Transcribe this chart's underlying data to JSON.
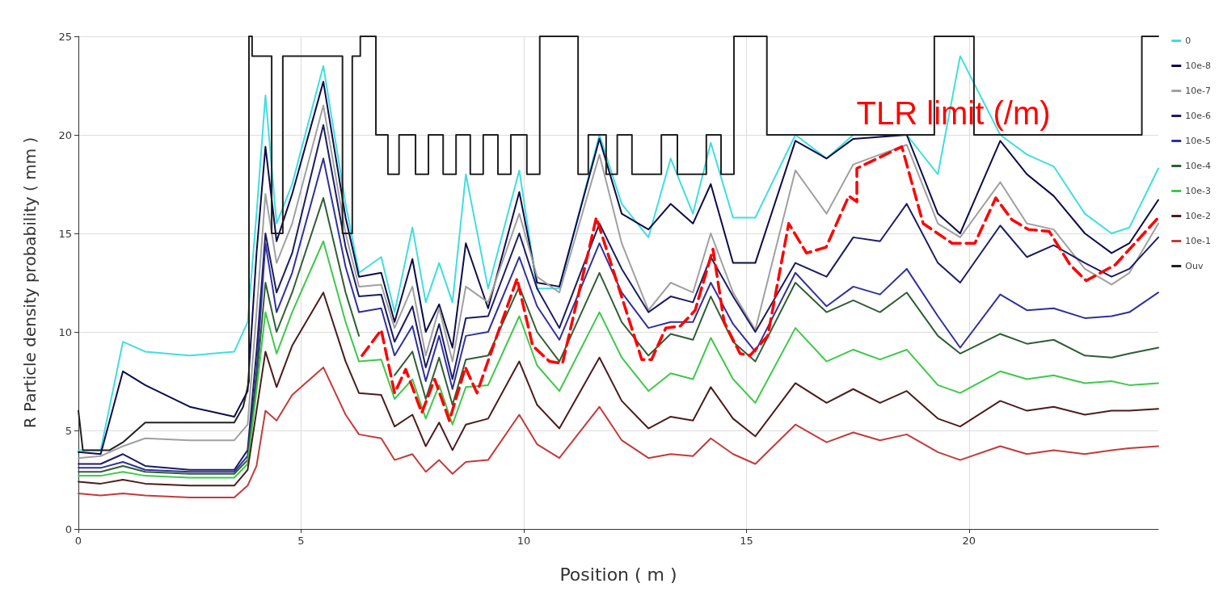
{
  "chart_data": {
    "type": "line",
    "xlabel": "Position ( m )",
    "ylabel": "R Particle density probability ( mm )",
    "xlim": [
      0,
      24.25
    ],
    "xticks": [
      0,
      5,
      10,
      15,
      20
    ],
    "ylim": [
      0,
      25
    ],
    "yticks": [
      0,
      5,
      10,
      15,
      20,
      25
    ],
    "grid": true,
    "legend": "right",
    "marker": "none",
    "x": [
      0,
      0.5,
      1.0,
      1.5,
      2.5,
      3.5,
      3.8,
      4.0,
      4.2,
      4.45,
      4.8,
      5.5,
      6.0,
      6.3,
      6.8,
      7.1,
      7.5,
      7.8,
      8.1,
      8.4,
      8.7,
      9.2,
      9.9,
      10.3,
      10.8,
      11.7,
      12.2,
      12.8,
      13.3,
      13.8,
      14.2,
      14.7,
      15.2,
      16.1,
      16.8,
      17.4,
      18.0,
      18.6,
      19.3,
      19.8,
      20.7,
      21.3,
      21.9,
      22.6,
      23.2,
      23.6,
      24.25
    ],
    "annotations": [
      {
        "text": "TLR limit (/m)",
        "x": 19.65,
        "y": 21.1
      }
    ],
    "series": [
      {
        "name": "0",
        "color": "#40dede",
        "values": [
          4.0,
          4.0,
          9.5,
          9.0,
          8.8,
          9.0,
          10.5,
          16,
          22.0,
          15.5,
          17.5,
          23.5,
          16.5,
          13.0,
          13.8,
          11.0,
          15.3,
          11.5,
          13.5,
          11.5,
          18.0,
          12.2,
          18.2,
          12.2,
          12.2,
          20.0,
          16.5,
          14.8,
          18.8,
          16.0,
          19.6,
          15.8,
          15.8,
          20.0,
          18.8,
          20.0,
          20.0,
          20.0,
          18.0,
          24.0,
          20.0,
          19.0,
          18.4,
          16.0,
          15.0,
          15.3,
          18.3
        ]
      },
      {
        "name": "10e-8",
        "color": "#0c0c4a",
        "values": [
          3.9,
          3.8,
          8.0,
          7.3,
          6.2,
          5.7,
          7.0,
          14,
          19.4,
          14.6,
          17.0,
          22.7,
          15.8,
          12.8,
          13.0,
          10.5,
          13.7,
          10.0,
          11.4,
          9.2,
          14.5,
          11.2,
          17.1,
          12.5,
          12.3,
          19.8,
          16.0,
          15.2,
          16.5,
          15.5,
          17.5,
          13.5,
          13.5,
          19.7,
          18.8,
          19.8,
          19.9,
          20.0,
          16.0,
          15.0,
          19.7,
          18.0,
          16.9,
          15.0,
          14.0,
          14.5,
          16.7
        ]
      },
      {
        "name": "10e-7",
        "color": "#a0a0a0",
        "values": [
          3.6,
          3.7,
          4.2,
          4.6,
          4.5,
          4.5,
          5.3,
          11,
          17,
          13.5,
          15.5,
          21.5,
          15.0,
          12.3,
          12.4,
          10.2,
          12.3,
          8.8,
          11.2,
          8.5,
          12.3,
          11.5,
          16.0,
          12.8,
          12.0,
          19.0,
          14.5,
          11.1,
          12.5,
          12.0,
          15.0,
          12.0,
          10.1,
          18.2,
          16.0,
          18.5,
          19.0,
          19.5,
          15.5,
          14.8,
          17.6,
          15.5,
          15.2,
          13.2,
          12.4,
          13.0,
          15.5
        ]
      },
      {
        "name": "10e-6",
        "color": "#1c1c62",
        "values": [
          3.3,
          3.3,
          3.8,
          3.2,
          3.0,
          3.0,
          4.0,
          9,
          15.0,
          12,
          14,
          20.5,
          14.3,
          11.8,
          11.9,
          9.5,
          11.3,
          8.2,
          10.4,
          7.6,
          10.7,
          10.8,
          15.0,
          12.2,
          10.2,
          15.5,
          13.2,
          11.0,
          11.8,
          11.5,
          13.8,
          11.8,
          10.0,
          13.5,
          12.8,
          14.8,
          14.6,
          16.5,
          13.5,
          12.5,
          15.4,
          13.8,
          14.4,
          13.5,
          12.8,
          13.2,
          14.8
        ]
      },
      {
        "name": "10e-5",
        "color": "#30309c",
        "values": [
          3.1,
          3.1,
          3.4,
          3.0,
          2.9,
          2.9,
          3.7,
          8,
          14.5,
          11,
          13.0,
          18.8,
          13.3,
          11,
          11.2,
          8.8,
          10.3,
          7.5,
          9.8,
          7.1,
          9.8,
          10.0,
          13.8,
          11.3,
          9.6,
          14.5,
          12.0,
          10.2,
          10.5,
          10.5,
          12.5,
          10.4,
          9.0,
          13.0,
          11.3,
          12.3,
          11.9,
          13.2,
          10.8,
          9.2,
          11.9,
          11.1,
          11.2,
          10.7,
          10.8,
          11.0,
          12.0
        ]
      },
      {
        "name": "10e-4",
        "color": "#2f5e34",
        "values": [
          2.9,
          2.9,
          3.2,
          2.9,
          2.8,
          2.8,
          3.5,
          7.5,
          12.5,
          10,
          12.0,
          16.8,
          12,
          9.8,
          null,
          7.8,
          9.0,
          6.6,
          8.7,
          6.3,
          8.6,
          8.8,
          12.3,
          10.0,
          8.5,
          13.0,
          10.5,
          8.8,
          9.9,
          9.6,
          11.8,
          9.5,
          8.5,
          12.5,
          11.0,
          11.6,
          11.0,
          12.0,
          9.8,
          8.9,
          9.9,
          9.4,
          9.6,
          8.8,
          8.7,
          8.9,
          9.2
        ]
      },
      {
        "name": "10e-3",
        "color": "#3ec84a",
        "values": [
          2.7,
          2.7,
          2.9,
          2.7,
          2.6,
          2.6,
          3.3,
          7,
          11.0,
          8.9,
          11.0,
          14.6,
          10.5,
          8.5,
          8.6,
          6.6,
          7.6,
          5.6,
          7.3,
          5.3,
          7.2,
          7.3,
          10.8,
          8.3,
          7.0,
          11.0,
          8.7,
          7.0,
          7.9,
          7.6,
          9.7,
          7.6,
          6.4,
          10.2,
          8.5,
          9.1,
          8.6,
          9.1,
          7.3,
          6.9,
          8.0,
          7.6,
          7.8,
          7.4,
          7.5,
          7.3,
          7.4
        ]
      },
      {
        "name": "10e-2",
        "color": "#4c1c1c",
        "values": [
          2.4,
          2.3,
          2.5,
          2.3,
          2.2,
          2.2,
          3.0,
          6,
          9.0,
          7.2,
          9.3,
          12.0,
          8.5,
          6.9,
          6.8,
          5.2,
          5.8,
          4.2,
          5.4,
          4.0,
          5.3,
          5.6,
          8.5,
          6.3,
          5.1,
          8.7,
          6.5,
          5.1,
          5.7,
          5.5,
          7.2,
          5.6,
          4.7,
          7.4,
          6.4,
          7.1,
          6.4,
          7.0,
          5.6,
          5.2,
          6.5,
          6.0,
          6.2,
          5.8,
          6.0,
          6.0,
          6.1
        ]
      },
      {
        "name": "10e-1",
        "color": "#c43a3a",
        "values": [
          1.8,
          1.7,
          1.8,
          1.7,
          1.6,
          1.6,
          2.2,
          3.2,
          6.0,
          5.5,
          6.8,
          8.2,
          5.8,
          4.8,
          4.6,
          3.5,
          3.8,
          2.9,
          3.5,
          2.8,
          3.4,
          3.5,
          5.8,
          4.3,
          3.6,
          6.2,
          4.5,
          3.6,
          3.8,
          3.7,
          4.6,
          3.8,
          3.3,
          5.3,
          4.4,
          4.9,
          4.5,
          4.8,
          3.9,
          3.5,
          4.2,
          3.8,
          4.0,
          3.8,
          4.0,
          4.1,
          4.2
        ]
      },
      {
        "name": "Ouv",
        "color": "#202020",
        "x": [
          0,
          0.1,
          0.7,
          1.0,
          1.5,
          3.5,
          3.7,
          3.83,
          3.83,
          3.9,
          3.9,
          4.34,
          4.34,
          4.59,
          4.59,
          5.93,
          5.93,
          6.15,
          6.15,
          6.33,
          6.33,
          6.68,
          6.68,
          6.95,
          6.95,
          7.2,
          7.2,
          7.57,
          7.57,
          7.86,
          7.86,
          8.19,
          8.19,
          8.48,
          8.48,
          8.8,
          8.8,
          9.09,
          9.09,
          9.42,
          9.42,
          9.71,
          9.71,
          10.07,
          10.07,
          10.36,
          10.36,
          11.22,
          11.22,
          11.45,
          11.45,
          11.85,
          11.85,
          12.1,
          12.1,
          12.43,
          12.43,
          13.09,
          13.09,
          13.45,
          13.45,
          14.1,
          14.1,
          14.43,
          14.43,
          14.72,
          14.72,
          15.46,
          15.46,
          19.22,
          19.22,
          20.11,
          20.11,
          23.88,
          23.88,
          24.25
        ],
        "values": [
          6.0,
          4.0,
          4.0,
          4.4,
          5.4,
          5.4,
          6.2,
          7.5,
          25,
          25,
          24,
          24,
          15,
          15,
          24,
          24,
          15,
          15,
          24,
          24,
          25,
          25,
          20,
          20,
          18,
          18,
          20,
          20,
          18,
          18,
          20,
          20,
          18,
          18,
          20,
          20,
          18,
          18,
          20,
          20,
          18,
          18,
          20,
          20,
          18,
          18,
          25,
          25,
          18,
          18,
          20,
          20,
          18,
          18,
          20,
          20,
          18,
          18,
          20,
          20,
          18,
          18,
          20,
          20,
          18,
          18,
          25,
          25,
          20,
          20,
          25,
          25,
          20,
          20,
          25,
          25
        ]
      },
      {
        "color": "#ff0000",
        "line_style": "dashed",
        "x": [
          6.37,
          6.8,
          7.1,
          7.35,
          7.71,
          8.0,
          8.33,
          8.69,
          8.95,
          9.35,
          9.85,
          10.2,
          10.58,
          10.87,
          11.63,
          12.65,
          12.87,
          13.19,
          13.52,
          13.85,
          14.25,
          14.5,
          14.86,
          15.08,
          15.48,
          15.95,
          16.35,
          16.79,
          17.3,
          17.48,
          17.48,
          18.49,
          18.97,
          19.62,
          20.13,
          20.6,
          20.96,
          21.33,
          21.8,
          22.27,
          22.63,
          23.28,
          24.25
        ],
        "values": [
          8.8,
          10.1,
          6.9,
          8.1,
          5.9,
          7.6,
          5.5,
          8.2,
          6.9,
          9.5,
          12.7,
          9.3,
          8.5,
          8.4,
          15.8,
          8.6,
          8.6,
          10.2,
          10.3,
          11.1,
          14.2,
          10.5,
          8.9,
          8.8,
          9.8,
          15.5,
          14.0,
          14.3,
          16.9,
          16.6,
          18.3,
          19.4,
          15.5,
          14.5,
          14.5,
          16.8,
          15.7,
          15.2,
          15.1,
          13.4,
          12.6,
          13.4,
          15.8
        ]
      }
    ]
  }
}
